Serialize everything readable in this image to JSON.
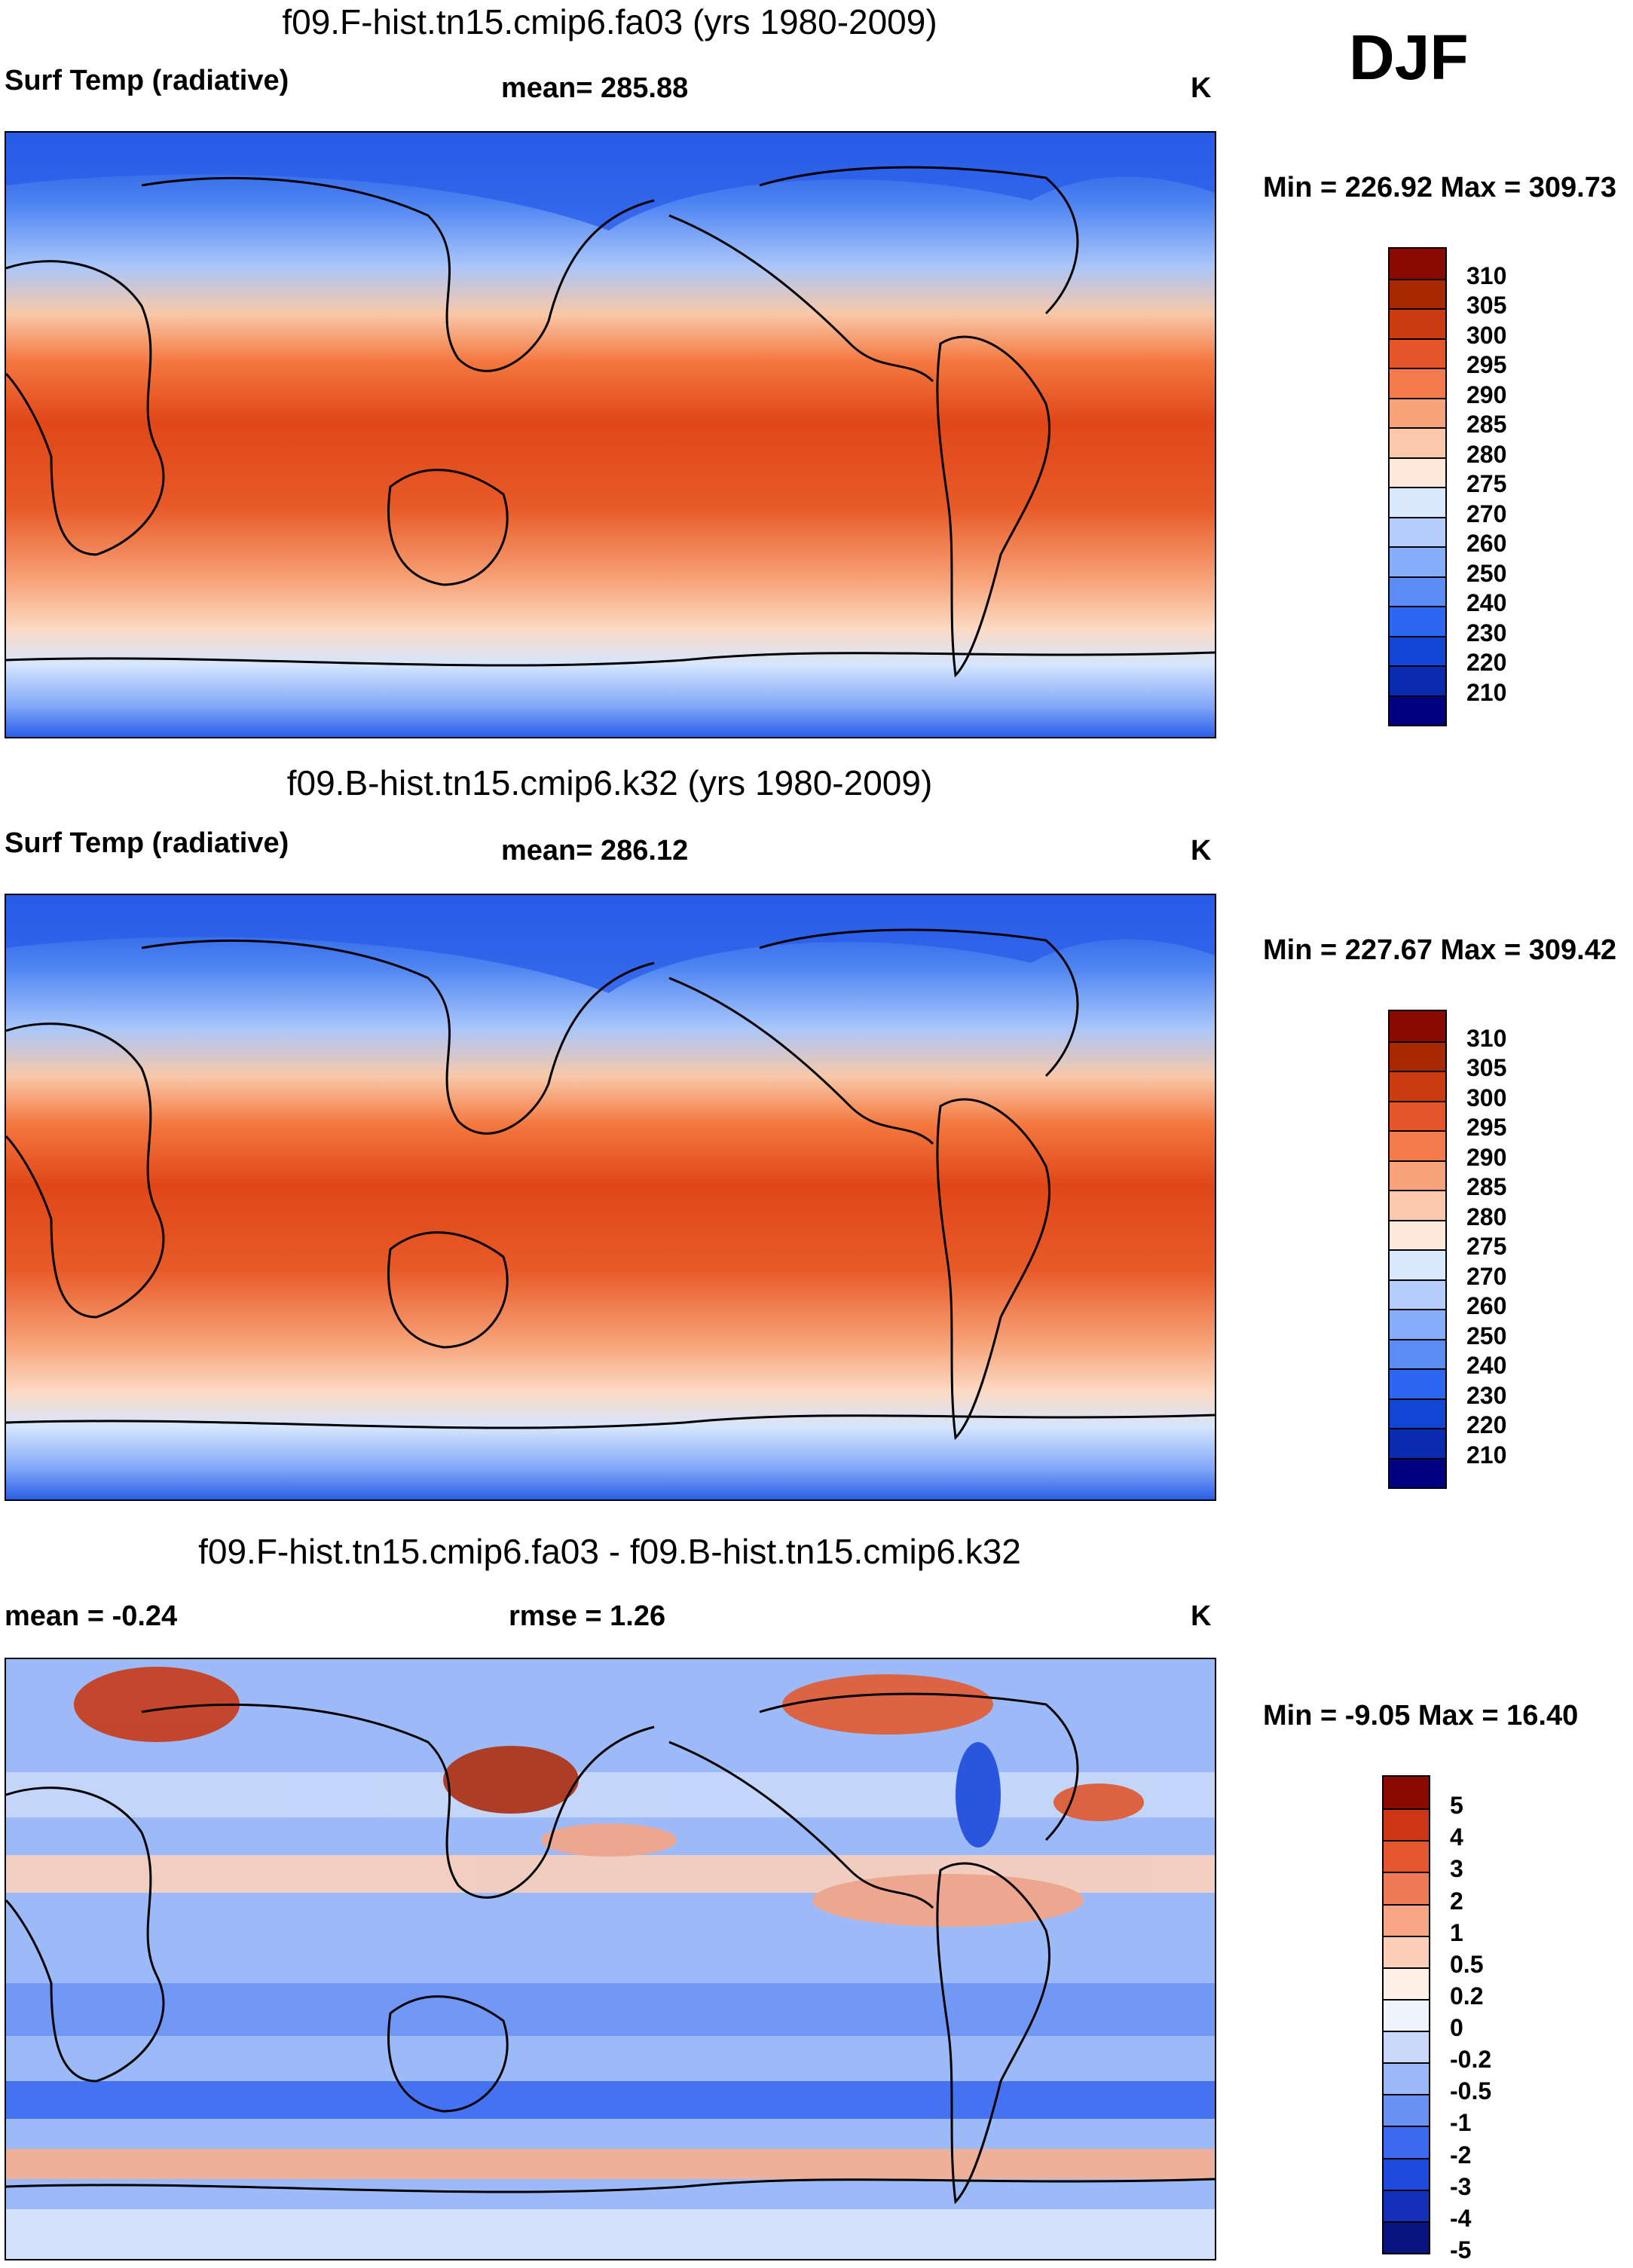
{
  "season": "DJF",
  "palettes": {
    "abs": [
      "#000080",
      "#0a2bb0",
      "#1446d6",
      "#2d66f0",
      "#5a8cf5",
      "#86aefa",
      "#b4cdfc",
      "#d9e8fd",
      "#fde8d9",
      "#fcc8ab",
      "#f9a37a",
      "#f47b4d",
      "#e6552a",
      "#cc3a10",
      "#a82800",
      "#8b0a00"
    ],
    "diff": [
      "#0a1480",
      "#1430b8",
      "#1e4bdc",
      "#3b6af0",
      "#6a92f5",
      "#9bb8f8",
      "#c8d8fb",
      "#eef3fe",
      "#fef0e6",
      "#fbcfb8",
      "#f6a585",
      "#ef7b55",
      "#e4562e",
      "#cc3614",
      "#8b0a00"
    ]
  },
  "panels": [
    {
      "title": "f09.F-hist.tn15.cmip6.fa03 (yrs 1980-2009)",
      "left_label": "Surf Temp (radiative)",
      "center_label": "mean= 285.88",
      "units": "K",
      "minmax": "Min = 226.92 Max = 309.73",
      "palette": "abs",
      "levels": [
        "310",
        "305",
        "300",
        "295",
        "290",
        "285",
        "280",
        "275",
        "270",
        "260",
        "250",
        "240",
        "230",
        "220",
        "210"
      ]
    },
    {
      "title": "f09.B-hist.tn15.cmip6.k32 (yrs 1980-2009)",
      "left_label": "Surf Temp (radiative)",
      "center_label": "mean= 286.12",
      "units": "K",
      "minmax": "Min = 227.67 Max = 309.42",
      "palette": "abs",
      "levels": [
        "310",
        "305",
        "300",
        "295",
        "290",
        "285",
        "280",
        "275",
        "270",
        "260",
        "250",
        "240",
        "230",
        "220",
        "210"
      ]
    },
    {
      "title": "f09.F-hist.tn15.cmip6.fa03 - f09.B-hist.tn15.cmip6.k32",
      "left_label": "mean =  -0.24",
      "center_label": "rmse =   1.26",
      "units": "K",
      "minmax": "Min =  -9.05 Max =  16.40",
      "palette": "diff",
      "levels": [
        "5",
        "4",
        "3",
        "2",
        "1",
        "0.5",
        "0.2",
        "0",
        "-0.2",
        "-0.5",
        "-1",
        "-2",
        "-3",
        "-4",
        "-5"
      ]
    }
  ]
}
